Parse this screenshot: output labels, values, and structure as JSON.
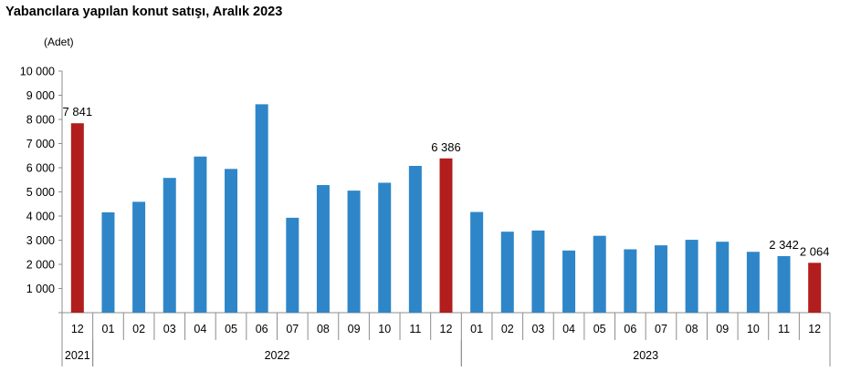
{
  "header": {
    "title": "Yabancılara yapılan konut satışı, Aralık 2023"
  },
  "chart_data": {
    "type": "bar",
    "title": "Yabancılara yapılan konut satışı, Aralık 2023",
    "ylabel": "(Adet)",
    "ylim": [
      0,
      10000
    ],
    "yticks": [
      0,
      1000,
      2000,
      3000,
      4000,
      5000,
      6000,
      7000,
      8000,
      9000,
      10000
    ],
    "ytick_labels": [
      "",
      "1 000",
      "2 000",
      "3 000",
      "4 000",
      "5 000",
      "6 000",
      "7 000",
      "8 000",
      "9 000",
      "10 000"
    ],
    "grid": false,
    "legend": "none",
    "categories": [
      "12",
      "01",
      "02",
      "03",
      "04",
      "05",
      "06",
      "07",
      "08",
      "09",
      "10",
      "11",
      "12",
      "01",
      "02",
      "03",
      "04",
      "05",
      "06",
      "07",
      "08",
      "09",
      "10",
      "11",
      "12"
    ],
    "values": [
      7841,
      4153,
      4590,
      5578,
      6463,
      5950,
      8627,
      3929,
      5282,
      5052,
      5378,
      6076,
      6386,
      4168,
      3352,
      3401,
      2573,
      3182,
      2623,
      2788,
      3017,
      2937,
      2519,
      2342,
      2064
    ],
    "highlight": [
      true,
      false,
      false,
      false,
      false,
      false,
      false,
      false,
      false,
      false,
      false,
      false,
      true,
      false,
      false,
      false,
      false,
      false,
      false,
      false,
      false,
      false,
      false,
      false,
      true
    ],
    "data_labels": [
      {
        "index": 0,
        "text": "7 841"
      },
      {
        "index": 12,
        "text": "6 386"
      },
      {
        "index": 23,
        "text": "2 342"
      },
      {
        "index": 24,
        "text": "2 064"
      }
    ],
    "year_groups": [
      {
        "label": "2021",
        "start": 0,
        "end": 0
      },
      {
        "label": "2022",
        "start": 1,
        "end": 12
      },
      {
        "label": "2023",
        "start": 13,
        "end": 24
      }
    ],
    "colors": {
      "bar": "#2e86c8",
      "highlight": "#b21d1d",
      "axis": "#8c8c8c",
      "text": "#000000"
    }
  }
}
